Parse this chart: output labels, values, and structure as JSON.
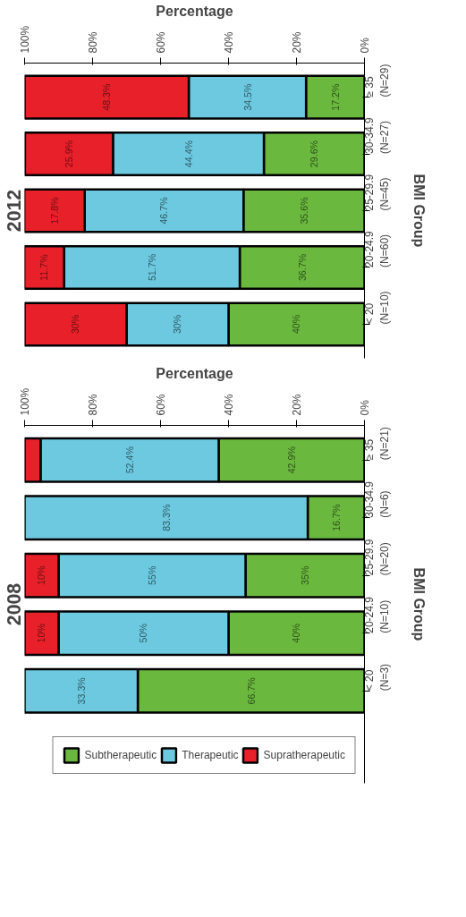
{
  "chart_data": [
    {
      "type": "bar",
      "title": "2012",
      "orientation": "horizontal",
      "stacked": true,
      "xlabel": "Percentage",
      "ylabel": "BMI Group",
      "categories": [
        "≥ 35\n(N=29)",
        "30-34.9\n(N=27)",
        "25-29.9\n(N=45)",
        "20-24.9\n(N=60)",
        "< 20\n(N=10)"
      ],
      "xlim": [
        100,
        0
      ],
      "xticks": [
        {
          "value": 0,
          "label": "0%"
        },
        {
          "value": 20,
          "label": "20%"
        },
        {
          "value": 40,
          "label": "40%"
        },
        {
          "value": 60,
          "label": "60%"
        },
        {
          "value": 80,
          "label": "80%"
        },
        {
          "value": 100,
          "label": "100%"
        }
      ],
      "grid": false,
      "series": [
        {
          "color": "#6ab83e",
          "values": [
            17.2,
            29.6,
            35.6,
            36.7,
            40
          ],
          "value_labels": [
            "17.2%",
            "29.6%",
            "35.6%",
            "36.7%",
            "40%"
          ]
        },
        {
          "color": "#6cc9e0",
          "values": [
            34.5,
            44.4,
            46.7,
            51.7,
            30
          ],
          "value_labels": [
            "34.5%",
            "44.4%",
            "46.7%",
            "51.7%",
            "30%"
          ]
        },
        {
          "color": "#e8202a",
          "values": [
            48.3,
            25.9,
            17.8,
            11.7,
            30
          ],
          "value_labels": [
            "48.3%",
            "25.9%",
            "17.8%",
            "11.7%",
            "30%"
          ]
        }
      ]
    },
    {
      "type": "bar",
      "title": "2008",
      "orientation": "horizontal",
      "stacked": true,
      "xlabel": "Percentage",
      "ylabel": "BMI Group",
      "categories": [
        "≥ 35\n(N=21)",
        "30-34.9\n(N=6)",
        "25-29.9\n(N=20)",
        "20-24.9\n(N=10)",
        "< 20\n(N=3)"
      ],
      "xlim": [
        100,
        0
      ],
      "xticks": [
        {
          "value": 0,
          "label": "0%"
        },
        {
          "value": 20,
          "label": "20%"
        },
        {
          "value": 40,
          "label": "40%"
        },
        {
          "value": 60,
          "label": "60%"
        },
        {
          "value": 80,
          "label": "80%"
        },
        {
          "value": 100,
          "label": "100%"
        }
      ],
      "grid": false,
      "legend": "bottom right",
      "series": [
        {
          "name": "Subtherapeutic",
          "color": "#6ab83e",
          "values": [
            42.9,
            16.7,
            35,
            40,
            66.7
          ],
          "value_labels": [
            "42.9%",
            "16.7%",
            "35%",
            "40%",
            "66.7%"
          ]
        },
        {
          "name": "Therapeutic",
          "color": "#6cc9e0",
          "values": [
            52.4,
            83.3,
            55,
            50,
            33.3
          ],
          "value_labels": [
            "52.4%",
            "83.3%",
            "55%",
            "50%",
            "33.3%"
          ]
        },
        {
          "name": "Supratherapeutic",
          "color": "#e8202a",
          "values": [
            4.7,
            0,
            10,
            10,
            0
          ],
          "value_labels": [
            null,
            null,
            "10%",
            "10%",
            null
          ]
        }
      ]
    }
  ]
}
